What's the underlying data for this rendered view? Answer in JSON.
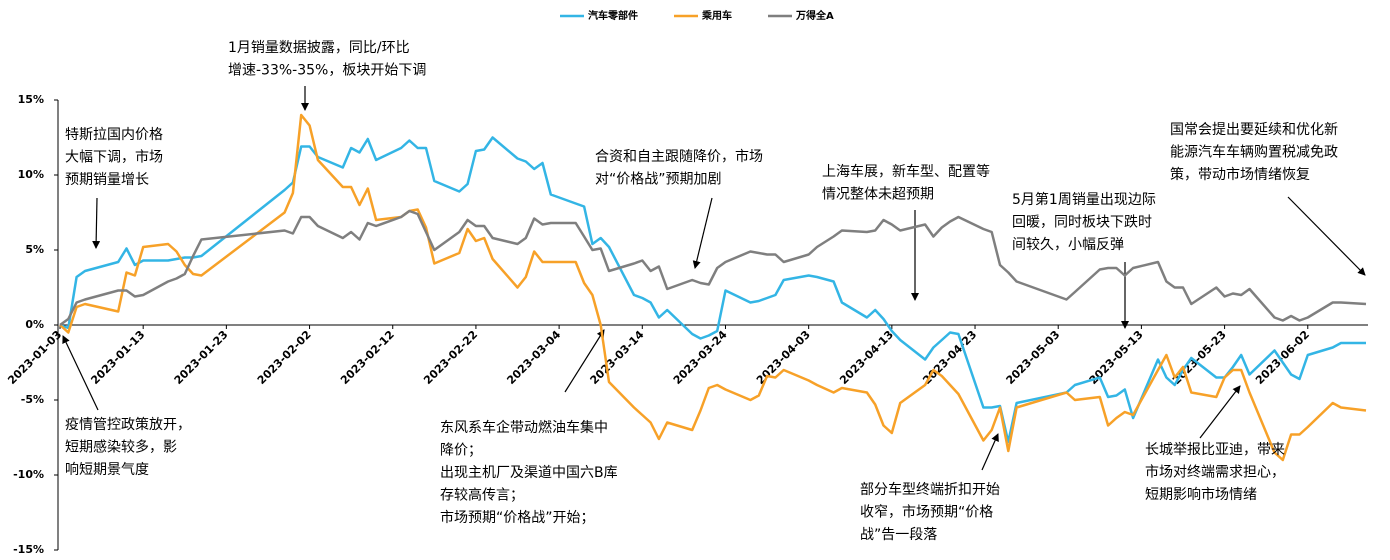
{
  "chart_data": {
    "type": "line",
    "x": [
      "2023-01-03",
      "2023-01-04",
      "2023-01-05",
      "2023-01-06",
      "2023-01-10",
      "2023-01-11",
      "2023-01-12",
      "2023-01-13",
      "2023-01-16",
      "2023-01-17",
      "2023-01-18",
      "2023-01-19",
      "2023-01-20",
      "2023-01-30",
      "2023-01-31",
      "2023-02-01",
      "2023-02-02",
      "2023-02-03",
      "2023-02-06",
      "2023-02-07",
      "2023-02-08",
      "2023-02-09",
      "2023-02-10",
      "2023-02-13",
      "2023-02-14",
      "2023-02-15",
      "2023-02-16",
      "2023-02-17",
      "2023-02-20",
      "2023-02-21",
      "2023-02-22",
      "2023-02-23",
      "2023-02-24",
      "2023-02-27",
      "2023-02-28",
      "2023-03-01",
      "2023-03-02",
      "2023-03-03",
      "2023-03-06",
      "2023-03-07",
      "2023-03-08",
      "2023-03-09",
      "2023-03-10",
      "2023-03-13",
      "2023-03-14",
      "2023-03-15",
      "2023-03-16",
      "2023-03-17",
      "2023-03-20",
      "2023-03-21",
      "2023-03-22",
      "2023-03-23",
      "2023-03-24",
      "2023-03-27",
      "2023-03-28",
      "2023-03-29",
      "2023-03-30",
      "2023-03-31",
      "2023-04-03",
      "2023-04-04",
      "2023-04-06",
      "2023-04-07",
      "2023-04-10",
      "2023-04-11",
      "2023-04-12",
      "2023-04-13",
      "2023-04-14",
      "2023-04-17",
      "2023-04-18",
      "2023-04-19",
      "2023-04-20",
      "2023-04-21",
      "2023-04-24",
      "2023-04-25",
      "2023-04-26",
      "2023-04-27",
      "2023-04-28",
      "2023-05-04",
      "2023-05-05",
      "2023-05-08",
      "2023-05-09",
      "2023-05-10",
      "2023-05-11",
      "2023-05-12",
      "2023-05-15",
      "2023-05-16",
      "2023-05-17",
      "2023-05-18",
      "2023-05-19",
      "2023-05-22",
      "2023-05-23",
      "2023-05-24",
      "2023-05-25",
      "2023-05-26",
      "2023-05-29",
      "2023-05-30",
      "2023-05-31",
      "2023-06-01",
      "2023-06-02",
      "2023-06-05",
      "2023-06-06",
      "2023-06-09"
    ],
    "series": [
      {
        "name": "汽车零部件",
        "color": "#33b5e5",
        "values": [
          0,
          -0.2,
          3.2,
          3.6,
          4.2,
          5.1,
          4.0,
          4.3,
          4.3,
          4.4,
          4.5,
          4.5,
          4.6,
          9.0,
          9.5,
          11.9,
          11.9,
          11.2,
          10.5,
          11.8,
          11.5,
          12.4,
          11.0,
          11.8,
          12.3,
          11.8,
          11.8,
          9.6,
          8.9,
          9.4,
          11.6,
          11.7,
          12.5,
          11.1,
          10.9,
          10.4,
          10.8,
          8.7,
          8.1,
          7.9,
          5.4,
          5.8,
          5.2,
          2.0,
          1.8,
          1.5,
          0.5,
          1.0,
          -0.6,
          -0.9,
          -0.7,
          -0.4,
          2.3,
          1.5,
          1.6,
          1.8,
          2.0,
          3.0,
          3.3,
          3.2,
          2.9,
          1.5,
          0.5,
          1.0,
          0.4,
          -0.4,
          -1.0,
          -2.3,
          -1.5,
          -1.0,
          -0.5,
          -0.6,
          -5.5,
          -5.5,
          -5.4,
          -7.8,
          -5.2,
          -4.5,
          -4.0,
          -3.5,
          -4.8,
          -4.7,
          -4.3,
          -6.2,
          -2.3,
          -3.5,
          -4.0,
          -3.0,
          -2.2,
          -3.5,
          -3.5,
          -2.8,
          -2.0,
          -3.3,
          -1.7,
          -2.5,
          -3.3,
          -3.6,
          -2.0,
          -1.5,
          -1.2,
          -1.2
        ]
      },
      {
        "name": "乘用车",
        "color": "#f7a128",
        "values": [
          0,
          -0.5,
          1.2,
          1.4,
          0.9,
          3.5,
          3.3,
          5.2,
          5.4,
          4.9,
          4.0,
          3.4,
          3.3,
          7.5,
          8.8,
          14.0,
          13.3,
          11.0,
          9.2,
          9.2,
          8.0,
          9.1,
          7.0,
          7.2,
          7.6,
          7.7,
          6.5,
          4.1,
          4.8,
          6.4,
          5.6,
          5.8,
          4.4,
          2.5,
          3.2,
          4.9,
          4.2,
          4.2,
          4.2,
          2.8,
          2.0,
          0.0,
          -3.8,
          -5.5,
          -6.0,
          -6.5,
          -7.6,
          -6.5,
          -7.0,
          -5.7,
          -4.2,
          -4.0,
          -4.3,
          -5.0,
          -4.7,
          -3.4,
          -3.5,
          -3.0,
          -3.7,
          -4.0,
          -4.5,
          -4.2,
          -4.5,
          -5.3,
          -6.7,
          -7.2,
          -5.2,
          -4.0,
          -3.0,
          -3.4,
          -4.0,
          -4.6,
          -7.7,
          -7.0,
          -5.5,
          -8.4,
          -5.5,
          -4.5,
          -5.0,
          -4.8,
          -6.7,
          -6.2,
          -5.8,
          -6.0,
          -3.0,
          -2.0,
          -3.5,
          -2.8,
          -4.5,
          -4.8,
          -3.5,
          -3.0,
          -3.0,
          -4.5,
          -8.5,
          -9.0,
          -7.3,
          -7.3,
          -6.8,
          -5.2,
          -5.5,
          -5.7
        ]
      },
      {
        "name": "万得全A",
        "color": "#7f7f7f",
        "values": [
          0,
          0.4,
          1.5,
          1.7,
          2.3,
          2.3,
          1.9,
          2.0,
          2.9,
          3.1,
          3.4,
          4.6,
          5.7,
          6.3,
          6.1,
          7.2,
          7.2,
          6.6,
          5.8,
          6.2,
          5.7,
          6.8,
          6.6,
          7.2,
          7.6,
          7.4,
          6.2,
          5.0,
          6.2,
          7.0,
          6.6,
          6.6,
          5.8,
          5.4,
          5.8,
          7.1,
          6.7,
          6.8,
          6.8,
          5.9,
          5.0,
          5.1,
          3.6,
          4.1,
          4.3,
          3.6,
          3.9,
          2.4,
          3.0,
          2.8,
          2.7,
          3.8,
          4.2,
          4.9,
          4.8,
          4.7,
          4.7,
          4.2,
          4.7,
          5.2,
          5.9,
          6.3,
          6.2,
          6.3,
          7.0,
          6.7,
          6.3,
          6.7,
          5.9,
          6.5,
          6.9,
          7.2,
          6.4,
          6.2,
          4.0,
          3.5,
          2.9,
          1.7,
          2.2,
          3.7,
          3.8,
          3.8,
          3.3,
          3.8,
          4.2,
          2.9,
          2.5,
          2.5,
          1.4,
          2.5,
          1.9,
          2.1,
          2.0,
          2.4,
          0.5,
          0.3,
          0.6,
          0.3,
          0.5,
          1.5,
          1.5,
          1.4
        ]
      }
    ],
    "xlim": [
      "2023-01-03",
      "2023-06-09"
    ],
    "xticks": [
      "2023-01-03",
      "2023-01-13",
      "2023-01-23",
      "2023-02-02",
      "2023-02-12",
      "2023-02-22",
      "2023-03-04",
      "2023-03-14",
      "2023-03-24",
      "2023-04-03",
      "2023-04-13",
      "2023-04-23",
      "2023-05-03",
      "2023-05-13",
      "2023-05-23",
      "2023-06-02"
    ],
    "ylim": [
      -15,
      15
    ],
    "yticks": [
      {
        "value": -15,
        "label": "-15%"
      },
      {
        "value": -10,
        "label": "-10%"
      },
      {
        "value": -5,
        "label": "-5%"
      },
      {
        "value": 0,
        "label": "0%"
      },
      {
        "value": 5,
        "label": "5%"
      },
      {
        "value": 10,
        "label": "10%"
      },
      {
        "value": 15,
        "label": "15%"
      }
    ],
    "legend": "top",
    "annotations": [
      {
        "lines": [
          "1月销量数据披露，同比/环比",
          "增速-33%-35%，板块开始下调"
        ]
      },
      {
        "lines": [
          "特斯拉国内价格",
          "大幅下调，市场",
          "预期销量增长"
        ]
      },
      {
        "lines": [
          "合资和自主跟随降价，市场",
          "对“价格战”预期加剧"
        ]
      },
      {
        "lines": [
          "上海车展，新车型、配置等",
          "情况整体未超预期"
        ]
      },
      {
        "lines": [
          "5月第1周销量出现边际",
          "回暖，同时板块下跌时",
          "间较久，小幅反弹"
        ]
      },
      {
        "lines": [
          "国常会提出要延续和优化新",
          "能源汽车车辆购置税减免政",
          "策，带动市场情绪恢复"
        ]
      },
      {
        "lines": [
          "疫情管控政策放开，",
          "短期感染较多，影",
          "响短期景气度"
        ]
      },
      {
        "lines": [
          "东风系车企带动燃油车集中",
          "降价；",
          "出现主机厂及渠道中国六B库",
          "存较高传言；",
          "市场预期“价格战”开始；"
        ]
      },
      {
        "lines": [
          "部分车型终端折扣开始",
          "收窄，市场预期“价格",
          "战”告一段落"
        ]
      },
      {
        "lines": [
          "长城举报比亚迪，带来",
          "市场对终端需求担心，",
          "短期影响市场情绪"
        ]
      }
    ]
  }
}
